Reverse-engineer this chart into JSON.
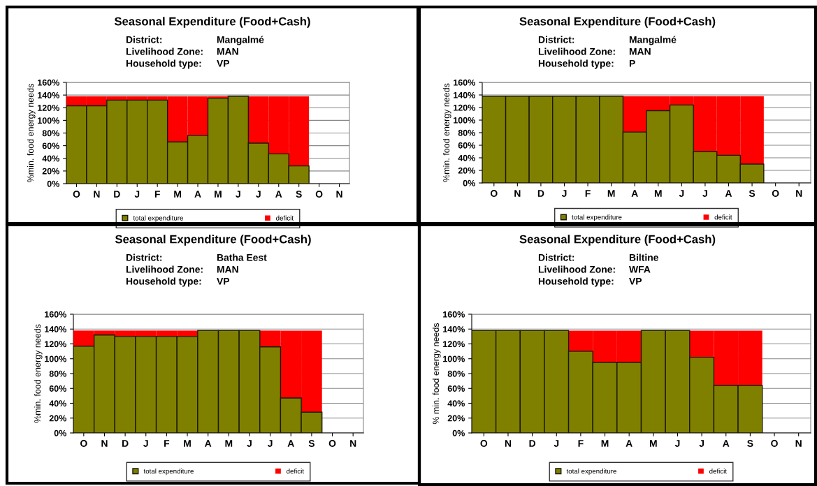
{
  "chart_data": [
    {
      "type": "bar",
      "title": "Seasonal Expenditure (Food+Cash)",
      "annotations": [
        "District:",
        "Mangalmé",
        "Livelihood Zone:",
        "MAN",
        "Household type:",
        "VP"
      ],
      "ylabel": "%min. food energy needs",
      "categories": [
        "O",
        "N",
        "D",
        "J",
        "F",
        "M",
        "A",
        "M",
        "J",
        "J",
        "A",
        "S",
        "O",
        "N"
      ],
      "stacked": true,
      "grid": "y",
      "legend": "bottom",
      "ylim": [
        0,
        160
      ],
      "yticks": [
        {
          "value": 0,
          "label": "0%"
        },
        {
          "value": 20,
          "label": "20%"
        },
        {
          "value": 40,
          "label": "40%"
        },
        {
          "value": 60,
          "label": "60%"
        },
        {
          "value": 80,
          "label": "80%"
        },
        {
          "value": 100,
          "label": "100%"
        },
        {
          "value": 120,
          "label": "120%"
        },
        {
          "value": 140,
          "label": "140%"
        },
        {
          "value": 160,
          "label": "160%"
        }
      ],
      "series": [
        {
          "name": "total expenditure",
          "color": "#808000",
          "values": [
            123,
            123,
            132,
            132,
            132,
            66,
            76,
            135,
            138,
            64,
            47,
            28,
            null,
            null
          ]
        },
        {
          "name": "deficit",
          "color": "#ff0000",
          "values": [
            15,
            15,
            6,
            6,
            6,
            72,
            62,
            3,
            0,
            74,
            91,
            110,
            null,
            null
          ]
        }
      ]
    },
    {
      "type": "bar",
      "title": "Seasonal Expenditure (Food+Cash)",
      "annotations": [
        "District:",
        "Mangalmé",
        "Livelihood Zone:",
        "MAN",
        "Household type:",
        "P"
      ],
      "ylabel": "%min. food energy needs",
      "categories": [
        "O",
        "N",
        "D",
        "J",
        "F",
        "M",
        "A",
        "M",
        "J",
        "J",
        "A",
        "S",
        "O",
        "N"
      ],
      "stacked": true,
      "grid": "y",
      "legend": "bottom",
      "ylim": [
        0,
        160
      ],
      "yticks": [
        {
          "value": 0,
          "label": "0%"
        },
        {
          "value": 20,
          "label": "20%"
        },
        {
          "value": 40,
          "label": "40%"
        },
        {
          "value": 60,
          "label": "60%"
        },
        {
          "value": 80,
          "label": "80%"
        },
        {
          "value": 100,
          "label": "100%"
        },
        {
          "value": 120,
          "label": "120%"
        },
        {
          "value": 140,
          "label": "140%"
        },
        {
          "value": 160,
          "label": "160%"
        }
      ],
      "series": [
        {
          "name": "total expenditure",
          "color": "#808000",
          "values": [
            138,
            138,
            138,
            138,
            138,
            138,
            81,
            115,
            124,
            50,
            44,
            30,
            null,
            null
          ]
        },
        {
          "name": "deficit",
          "color": "#ff0000",
          "values": [
            0,
            0,
            0,
            0,
            0,
            0,
            57,
            23,
            14,
            88,
            94,
            108,
            null,
            null
          ]
        }
      ]
    },
    {
      "type": "bar",
      "title": "Seasonal Expenditure (Food+Cash)",
      "annotations": [
        "District:",
        "Batha Eest",
        "Livelihood Zone:",
        "MAN",
        "Household type:",
        "VP"
      ],
      "ylabel": "%min. food energy needs",
      "categories": [
        "O",
        "N",
        "D",
        "J",
        "F",
        "M",
        "A",
        "M",
        "J",
        "J",
        "A",
        "S",
        "O",
        "N"
      ],
      "stacked": true,
      "grid": "y",
      "legend": "bottom",
      "ylim": [
        0,
        160
      ],
      "yticks": [
        {
          "value": 0,
          "label": "0%"
        },
        {
          "value": 20,
          "label": "20%"
        },
        {
          "value": 40,
          "label": "40%"
        },
        {
          "value": 60,
          "label": "60%"
        },
        {
          "value": 80,
          "label": "80%"
        },
        {
          "value": 100,
          "label": "100%"
        },
        {
          "value": 120,
          "label": "120%"
        },
        {
          "value": 140,
          "label": "140%"
        },
        {
          "value": 160,
          "label": "160%"
        }
      ],
      "series": [
        {
          "name": "total expenditure",
          "color": "#808000",
          "values": [
            117,
            132,
            130,
            130,
            130,
            130,
            138,
            138,
            138,
            116,
            47,
            28,
            null,
            null
          ]
        },
        {
          "name": "deficit",
          "color": "#ff0000",
          "values": [
            21,
            6,
            8,
            8,
            8,
            8,
            0,
            0,
            0,
            22,
            91,
            110,
            null,
            null
          ]
        }
      ]
    },
    {
      "type": "bar",
      "title": "Seasonal Expenditure (Food+Cash)",
      "annotations": [
        "District:",
        "Biltine",
        "Livelihood Zone:",
        "WFA",
        "Household type:",
        "VP"
      ],
      "ylabel": "% min. food energy needs",
      "categories": [
        "O",
        "N",
        "D",
        "J",
        "F",
        "M",
        "A",
        "M",
        "J",
        "J",
        "A",
        "S",
        "O",
        "N"
      ],
      "stacked": true,
      "grid": "y",
      "legend": "bottom",
      "ylim": [
        0,
        160
      ],
      "yticks": [
        {
          "value": 0,
          "label": "0%"
        },
        {
          "value": 20,
          "label": "20%"
        },
        {
          "value": 40,
          "label": "40%"
        },
        {
          "value": 60,
          "label": "60%"
        },
        {
          "value": 80,
          "label": "80%"
        },
        {
          "value": 100,
          "label": "100%"
        },
        {
          "value": 120,
          "label": "120%"
        },
        {
          "value": 140,
          "label": "140%"
        },
        {
          "value": 160,
          "label": "160%"
        }
      ],
      "series": [
        {
          "name": "total expenditure",
          "color": "#808000",
          "values": [
            138,
            138,
            138,
            138,
            110,
            95,
            95,
            138,
            138,
            102,
            64,
            64,
            null,
            null
          ]
        },
        {
          "name": "deficit",
          "color": "#ff0000",
          "values": [
            0,
            0,
            0,
            0,
            28,
            43,
            43,
            0,
            0,
            36,
            74,
            74,
            null,
            null
          ]
        }
      ]
    }
  ]
}
